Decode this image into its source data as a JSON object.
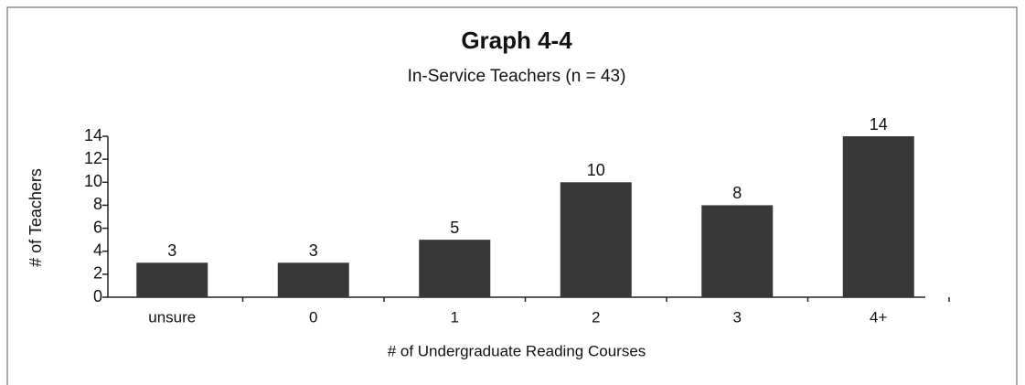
{
  "chart_data": {
    "type": "bar",
    "title": "Graph 4-4",
    "subtitle": "In-Service Teachers (n = 43)",
    "x_label": "# of Undergraduate Reading Courses",
    "y_label": "# of Teachers",
    "categories": [
      "unsure",
      "0",
      "1",
      "2",
      "3",
      "4+"
    ],
    "values": [
      3,
      3,
      5,
      10,
      8,
      14
    ],
    "color": "#383838",
    "ylim": [
      0,
      14
    ],
    "yticks": [
      0,
      2,
      4,
      6,
      8,
      10,
      12,
      14
    ],
    "grid": false
  }
}
